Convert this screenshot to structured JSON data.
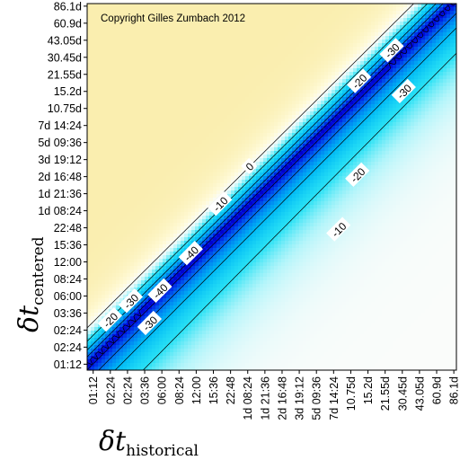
{
  "chart_data": {
    "type": "heatmap",
    "copyright": "Copyright Gilles Zumbach 2012",
    "xlabel": {
      "symbol": "δt",
      "subscript": "historical"
    },
    "ylabel": {
      "symbol": "δt",
      "subscript": "centered"
    },
    "x_ticks": [
      "01:12",
      "02:24",
      "02:24",
      "03:36",
      "06:00",
      "08:24",
      "12:00",
      "15:36",
      "22:48",
      "1d 08:24",
      "1d 21:36",
      "2d 16:48",
      "3d 19:12",
      "5d 09:36",
      "7d 14:24",
      "10.75d",
      "15.2d",
      "21.55d",
      "30.45d",
      "43.05d",
      "60.9d",
      "86.1d"
    ],
    "y_ticks": [
      "01:12",
      "02:24",
      "02:24",
      "03:36",
      "06:00",
      "08:24",
      "12:00",
      "15:36",
      "22:48",
      "1d 08:24",
      "1d 21:36",
      "2d 16:48",
      "3d 19:12",
      "5d 09:36",
      "7d 14:24",
      "10.75d",
      "15.2d",
      "21.55d",
      "30.45d",
      "43.05d",
      "60.9d",
      "86.1d"
    ],
    "contour_levels": [
      -40,
      -30,
      -20,
      -10,
      0
    ],
    "contour_labels": [
      {
        "text": "0",
        "i": 9.1,
        "j": 11.6
      },
      {
        "text": "-10",
        "i": 7.4,
        "j": 9.4
      },
      {
        "text": "-10",
        "i": 14.3,
        "j": 7.9
      },
      {
        "text": "-20",
        "i": 1.0,
        "j": 2.6
      },
      {
        "text": "-20",
        "i": 15.5,
        "j": 16.6
      },
      {
        "text": "-20",
        "i": 15.4,
        "j": 11.1
      },
      {
        "text": "-30",
        "i": 2.2,
        "j": 3.7
      },
      {
        "text": "-30",
        "i": 3.3,
        "j": 2.4
      },
      {
        "text": "-30",
        "i": 17.4,
        "j": 18.4
      },
      {
        "text": "-30",
        "i": 18.1,
        "j": 16.0
      },
      {
        "text": "-40",
        "i": 3.9,
        "j": 4.3
      },
      {
        "text": "-40",
        "i": 5.7,
        "j": 6.5
      }
    ]
  }
}
